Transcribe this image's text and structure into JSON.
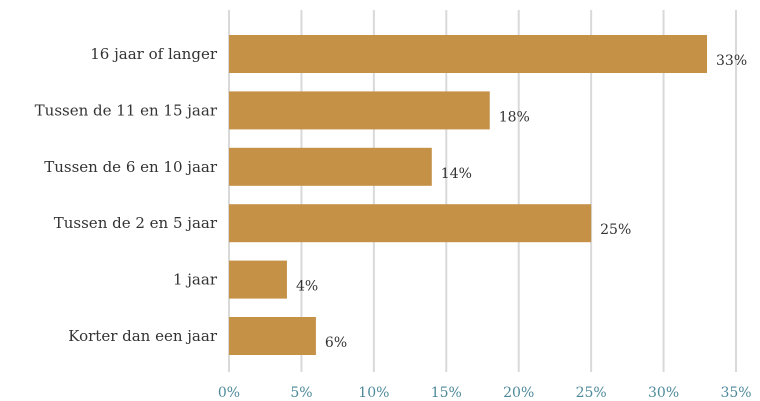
{
  "chart_data": {
    "type": "bar",
    "orientation": "horizontal",
    "categories": [
      "16 jaar of langer",
      "Tussen de 11 en 15 jaar",
      "Tussen de 6 en 10 jaar",
      "Tussen de 2 en 5 jaar",
      "1 jaar",
      "Korter dan een jaar"
    ],
    "values": [
      33,
      18,
      14,
      25,
      4,
      6
    ],
    "value_labels": [
      "33%",
      "18%",
      "14%",
      "25%",
      "4%",
      "6%"
    ],
    "x_ticks": [
      0,
      5,
      10,
      15,
      20,
      25,
      30,
      35
    ],
    "x_tick_labels": [
      "0%",
      "5%",
      "10%",
      "15%",
      "20%",
      "25%",
      "30%",
      "35%"
    ],
    "xlim": [
      0,
      35
    ],
    "grid": true,
    "legend": "none",
    "colors": {
      "bar": "#c59146",
      "grid": "#d9d9d9",
      "tick_text": "#4f8a9b",
      "label_text": "#333333"
    }
  }
}
